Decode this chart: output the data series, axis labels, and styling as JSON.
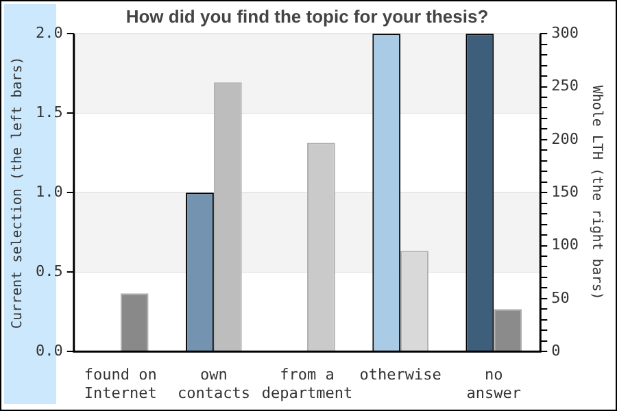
{
  "chart_data": {
    "type": "bar",
    "title": "How did you find the topic for your thesis?",
    "ylabel": "Current selection (the left bars)",
    "y2label": "Whole LTH (the right bars)",
    "categories": [
      "found on Internet",
      "own contacts",
      "from a department",
      "otherwise",
      "no answer"
    ],
    "series": [
      {
        "axis": "y",
        "colors": [
          "#7393b0",
          "#7393b0",
          "#a9cbe6",
          "#a9cbe6",
          "#3e5f7b"
        ],
        "values": [
          0,
          1,
          0,
          2,
          2
        ]
      },
      {
        "axis": "y2",
        "colors": [
          "#898989",
          "#bdbdbd",
          "#cacaca",
          "#d9d9d9",
          "#8b8b8b"
        ],
        "values": [
          55,
          254,
          197,
          95,
          40
        ]
      }
    ],
    "ylim": [
      0,
      2
    ],
    "yticks": [
      {
        "value": 0,
        "label": "0.0"
      },
      {
        "value": 0.5,
        "label": "0.5"
      },
      {
        "value": 1,
        "label": "1.0"
      },
      {
        "value": 1.5,
        "label": "1.5"
      },
      {
        "value": 2,
        "label": "2.0"
      }
    ],
    "y2lim": [
      0,
      300
    ],
    "y2ticks": [
      0,
      {
        "value": 10,
        "label": null
      },
      {
        "value": 20,
        "label": null
      },
      {
        "value": 30,
        "label": null
      },
      {
        "value": 40,
        "label": null
      },
      50,
      {
        "value": 60,
        "label": null
      },
      {
        "value": 70,
        "label": null
      },
      {
        "value": 80,
        "label": null
      },
      {
        "value": 90,
        "label": null
      },
      100,
      {
        "value": 110,
        "label": null
      },
      {
        "value": 120,
        "label": null
      },
      {
        "value": 130,
        "label": null
      },
      {
        "value": 140,
        "label": null
      },
      150,
      {
        "value": 160,
        "label": null
      },
      {
        "value": 170,
        "label": null
      },
      {
        "value": 180,
        "label": null
      },
      {
        "value": 190,
        "label": null
      },
      200,
      {
        "value": 210,
        "label": null
      },
      {
        "value": 220,
        "label": null
      },
      {
        "value": 230,
        "label": null
      },
      {
        "value": 240,
        "label": null
      },
      250,
      {
        "value": 260,
        "label": null
      },
      {
        "value": 270,
        "label": null
      },
      {
        "value": 280,
        "label": null
      },
      {
        "value": 290,
        "label": null
      },
      300
    ],
    "bands": [
      {
        "axis": "y",
        "from": 1.5,
        "to": 2,
        "color": "#f3f3f3"
      },
      {
        "axis": "y",
        "from": 0.5,
        "to": 1,
        "color": "#f3f3f3"
      }
    ],
    "grid": "y",
    "legend": false
  }
}
